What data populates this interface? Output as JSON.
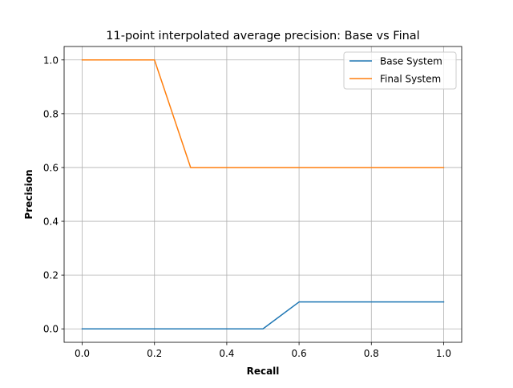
{
  "chart_data": {
    "type": "line",
    "title": "11-point interpolated average precision: Base vs Final",
    "xlabel": "Recall",
    "ylabel": "Precision",
    "x": [
      0.0,
      0.1,
      0.2,
      0.3,
      0.4,
      0.5,
      0.6,
      0.7,
      0.8,
      0.9,
      1.0
    ],
    "series": [
      {
        "name": "Base System",
        "color": "#1f77b4",
        "values": [
          0.0,
          0.0,
          0.0,
          0.0,
          0.0,
          0.0,
          0.1,
          0.1,
          0.1,
          0.1,
          0.1
        ]
      },
      {
        "name": "Final System",
        "color": "#ff7f0e",
        "values": [
          1.0,
          1.0,
          1.0,
          0.6,
          0.6,
          0.6,
          0.6,
          0.6,
          0.6,
          0.6,
          0.6
        ]
      }
    ],
    "xlim": [
      -0.05,
      1.05
    ],
    "ylim": [
      -0.05,
      1.05
    ],
    "xticks": [
      "0.0",
      "0.2",
      "0.4",
      "0.6",
      "0.8",
      "1.0"
    ],
    "yticks": [
      "0.0",
      "0.2",
      "0.4",
      "0.6",
      "0.8",
      "1.0"
    ],
    "grid": true,
    "legend_position": "top-right"
  }
}
